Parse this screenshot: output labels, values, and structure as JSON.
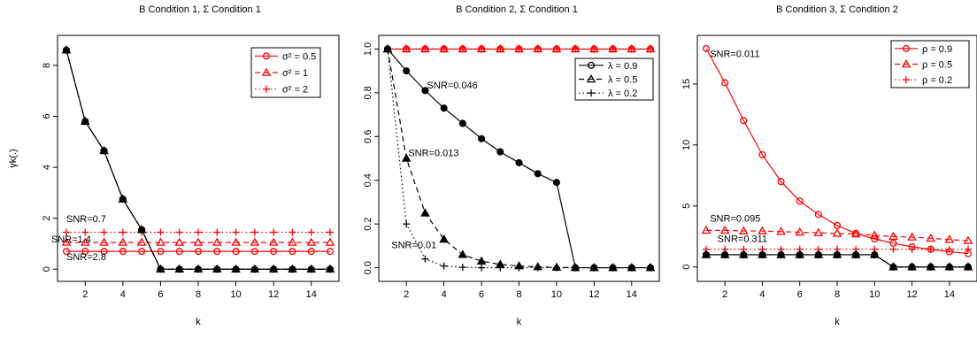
{
  "chart_data": [
    {
      "type": "line",
      "title": "B Condition 1, Σ Condition 1",
      "xlabel": "k",
      "ylabel": "γk(.)",
      "xlim": [
        1,
        15
      ],
      "ylim": [
        -0.2,
        8.9
      ],
      "xticks": [
        2,
        4,
        6,
        8,
        10,
        12,
        14
      ],
      "yticks": [
        0,
        2,
        4,
        6,
        8
      ],
      "x": [
        1,
        2,
        3,
        4,
        5,
        6,
        7,
        8,
        9,
        10,
        11,
        12,
        13,
        14,
        15
      ],
      "legend_position": "top-right",
      "series": [
        {
          "name": "σ² = 0.5",
          "color": "#ff0000",
          "marker": "circle",
          "line": "solid",
          "values": [
            0.7,
            0.7,
            0.7,
            0.7,
            0.7,
            0.7,
            0.7,
            0.7,
            0.7,
            0.7,
            0.7,
            0.7,
            0.7,
            0.7,
            0.7
          ]
        },
        {
          "name": "σ² = 1",
          "color": "#ff0000",
          "marker": "triangle",
          "line": "dashed",
          "values": [
            1.05,
            1.05,
            1.05,
            1.05,
            1.05,
            1.05,
            1.05,
            1.05,
            1.05,
            1.05,
            1.05,
            1.05,
            1.05,
            1.05,
            1.05
          ]
        },
        {
          "name": "σ² = 2",
          "color": "#ff0000",
          "marker": "plus",
          "line": "dotted",
          "values": [
            1.45,
            1.45,
            1.45,
            1.45,
            1.45,
            1.45,
            1.45,
            1.45,
            1.45,
            1.45,
            1.45,
            1.45,
            1.45,
            1.45,
            1.45
          ]
        },
        {
          "name": "",
          "color": "#000000",
          "marker": "circle",
          "line": "solid",
          "values": [
            8.6,
            5.8,
            4.65,
            2.75,
            1.55,
            0,
            0,
            0,
            0,
            0,
            0,
            0,
            0,
            0,
            0
          ]
        },
        {
          "name": "",
          "color": "#000000",
          "marker": "triangle",
          "line": "dashed",
          "values": [
            8.6,
            5.8,
            4.65,
            2.75,
            1.55,
            0,
            0,
            0,
            0,
            0,
            0,
            0,
            0,
            0,
            0
          ]
        },
        {
          "name": "",
          "color": "#000000",
          "marker": "plus",
          "line": "dotted",
          "values": [
            8.6,
            5.8,
            4.65,
            2.75,
            1.55,
            0,
            0,
            0,
            0,
            0,
            0,
            0,
            0,
            0,
            0
          ]
        }
      ],
      "annotations": [
        {
          "text": "SNR=0.7",
          "x": 1.0,
          "y": 1.85
        },
        {
          "text": "SNR=1.4",
          "x": 0.2,
          "y": 1.05
        },
        {
          "text": "SNR=2.8",
          "x": 1.0,
          "y": 0.35
        }
      ]
    },
    {
      "type": "line",
      "title": "B Condition 2, Σ Condition 1",
      "xlabel": "k",
      "ylabel": "",
      "xlim": [
        1,
        15
      ],
      "ylim": [
        -0.03,
        1.03
      ],
      "xticks": [
        2,
        4,
        6,
        8,
        10,
        12,
        14
      ],
      "yticks": [
        0.0,
        0.2,
        0.4,
        0.6,
        0.8,
        1.0
      ],
      "ytick_labels": [
        "0.0",
        "0.2",
        "0.4",
        "0.6",
        "0.8",
        "1.0"
      ],
      "x": [
        1,
        2,
        3,
        4,
        5,
        6,
        7,
        8,
        9,
        10,
        11,
        12,
        13,
        14,
        15
      ],
      "legend_position": "top-right",
      "series": [
        {
          "name": "",
          "color": "#ff0000",
          "marker": "circle",
          "line": "solid",
          "values": [
            1,
            1,
            1,
            1,
            1,
            1,
            1,
            1,
            1,
            1,
            1,
            1,
            1,
            1,
            1
          ]
        },
        {
          "name": "",
          "color": "#ff0000",
          "marker": "triangle",
          "line": "dashed",
          "values": [
            1,
            1,
            1,
            1,
            1,
            1,
            1,
            1,
            1,
            1,
            1,
            1,
            1,
            1,
            1
          ]
        },
        {
          "name": "",
          "color": "#ff0000",
          "marker": "plus",
          "line": "dotted",
          "values": [
            1,
            1,
            1,
            1,
            1,
            1,
            1,
            1,
            1,
            1,
            1,
            1,
            1,
            1,
            1
          ]
        },
        {
          "name": "λ = 0.9",
          "color": "#000000",
          "marker": "circle",
          "line": "solid",
          "values": [
            1.0,
            0.9,
            0.81,
            0.73,
            0.66,
            0.59,
            0.53,
            0.48,
            0.43,
            0.39,
            0,
            0,
            0,
            0,
            0
          ]
        },
        {
          "name": "λ = 0.5",
          "color": "#000000",
          "marker": "triangle",
          "line": "dashed",
          "values": [
            1.0,
            0.5,
            0.25,
            0.13,
            0.06,
            0.03,
            0.015,
            0.008,
            0.004,
            0.002,
            0,
            0,
            0,
            0,
            0
          ]
        },
        {
          "name": "λ = 0.2",
          "color": "#000000",
          "marker": "plus",
          "line": "dotted",
          "values": [
            1.0,
            0.2,
            0.04,
            0.008,
            0.002,
            0,
            0,
            0,
            0,
            0,
            0,
            0,
            0,
            0,
            0
          ]
        }
      ],
      "annotations": [
        {
          "text": "SNR=0.046",
          "x": 3.1,
          "y": 0.82
        },
        {
          "text": "SNR=0.013",
          "x": 2.1,
          "y": 0.51
        },
        {
          "text": "SNR=0.01",
          "x": 1.2,
          "y": 0.09
        }
      ]
    },
    {
      "type": "line",
      "title": "B Condition 3, Σ Condition 2",
      "xlabel": "k",
      "ylabel": "",
      "xlim": [
        1,
        15
      ],
      "ylim": [
        -0.6,
        18.4
      ],
      "xticks": [
        2,
        4,
        6,
        8,
        10,
        12,
        14
      ],
      "yticks": [
        0,
        5,
        10,
        15
      ],
      "x": [
        1,
        2,
        3,
        4,
        5,
        6,
        7,
        8,
        9,
        10,
        11,
        12,
        13,
        14,
        15
      ],
      "legend_position": "top-right",
      "series": [
        {
          "name": "ρ = 0.9",
          "color": "#ff0000",
          "marker": "circle",
          "line": "solid",
          "values": [
            17.9,
            15.1,
            12.0,
            9.2,
            7.0,
            5.4,
            4.3,
            3.4,
            2.75,
            2.3,
            1.95,
            1.65,
            1.45,
            1.25,
            1.1
          ]
        },
        {
          "name": "ρ = 0.5",
          "color": "#ff0000",
          "marker": "triangle",
          "line": "dashed",
          "values": [
            3.0,
            3.0,
            2.95,
            2.95,
            2.9,
            2.85,
            2.8,
            2.75,
            2.7,
            2.6,
            2.5,
            2.45,
            2.35,
            2.25,
            2.15
          ]
        },
        {
          "name": "ρ = 0.2",
          "color": "#ff0000",
          "marker": "plus",
          "line": "dotted",
          "values": [
            1.45,
            1.45,
            1.45,
            1.45,
            1.45,
            1.45,
            1.45,
            1.45,
            1.45,
            1.45,
            1.45,
            1.45,
            1.45,
            1.45,
            1.45
          ]
        },
        {
          "name": "",
          "color": "#000000",
          "marker": "circle",
          "line": "solid",
          "values": [
            1.0,
            1.0,
            1.0,
            1.0,
            1.0,
            1.0,
            1.0,
            1.0,
            1.0,
            1.0,
            0,
            0,
            0,
            0,
            0
          ]
        },
        {
          "name": "",
          "color": "#000000",
          "marker": "triangle",
          "line": "dashed",
          "values": [
            1.0,
            1.0,
            1.0,
            1.0,
            1.0,
            1.0,
            1.0,
            1.0,
            1.0,
            1.0,
            0,
            0,
            0,
            0,
            0
          ]
        },
        {
          "name": "",
          "color": "#000000",
          "marker": "plus",
          "line": "dotted",
          "values": [
            1.0,
            1.0,
            1.0,
            1.0,
            1.0,
            1.0,
            1.0,
            1.0,
            1.0,
            1.0,
            0,
            0,
            0,
            0,
            0
          ]
        }
      ],
      "annotations": [
        {
          "text": "SNR=0.011",
          "x": 1.2,
          "y": 17.2
        },
        {
          "text": "SNR=0.095",
          "x": 1.2,
          "y": 3.7
        },
        {
          "text": "SNR=0.311",
          "x": 1.6,
          "y": 2.05
        }
      ]
    }
  ]
}
